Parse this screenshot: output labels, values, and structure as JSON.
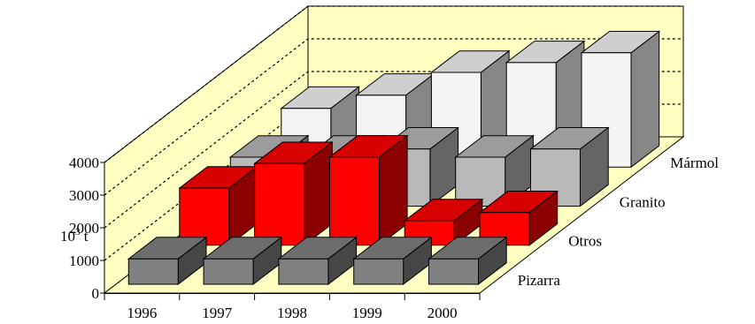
{
  "chart_data": {
    "type": "bar",
    "subtype": "3d-bar",
    "title": "",
    "ylabel_base": "10",
    "ylabel_exp": "3",
    "ylabel_unit": "t",
    "ylim": [
      0,
      4000
    ],
    "yticks": [
      "0",
      "1000",
      "2000",
      "3000",
      "4000"
    ],
    "gridlines": true,
    "categories": [
      "1996",
      "1997",
      "1998",
      "1999",
      "2000"
    ],
    "series": [
      {
        "name": "Pizarra",
        "values": [
          780,
          780,
          780,
          780,
          780
        ]
      },
      {
        "name": "Otros",
        "values": [
          1750,
          2500,
          2700,
          750,
          1000
        ]
      },
      {
        "name": "Granito",
        "values": [
          1500,
          1500,
          1750,
          1500,
          1750
        ]
      },
      {
        "name": "Mármol",
        "values": [
          1800,
          2200,
          2900,
          3200,
          3500
        ]
      }
    ],
    "colors": {
      "wall": "#FFFFC2",
      "floor": "#FFFFC2",
      "Pizarra": "#808080",
      "Otros": "#FF0000",
      "Granito": "#B8B8B8",
      "Mármol": "#F4F4F4"
    }
  }
}
